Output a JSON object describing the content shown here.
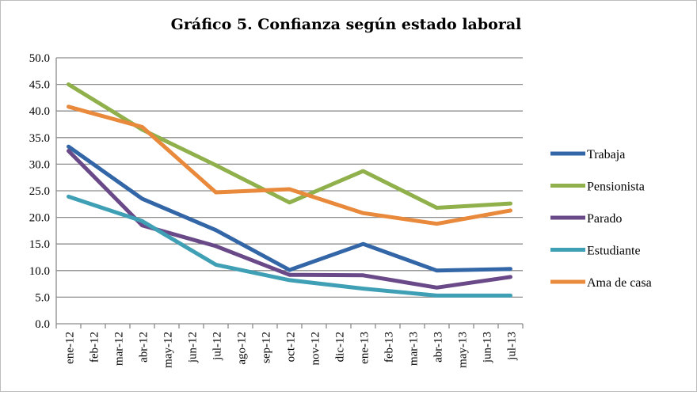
{
  "chart_data": {
    "type": "line",
    "title": "Gráfico 5. Confianza según estado laboral",
    "xlabel": "",
    "ylabel": "",
    "x": [
      "ene-12",
      "feb-12",
      "mar-12",
      "abr-12",
      "may-12",
      "jun-12",
      "jul-12",
      "ago-12",
      "sep-12",
      "oct-12",
      "nov-12",
      "dic-12",
      "ene-13",
      "feb-13",
      "mar-13",
      "abr-13",
      "may-13",
      "jun-13",
      "jul-13"
    ],
    "ylim": [
      0,
      50
    ],
    "y_ticks": [
      "0.0",
      "5.0",
      "10.0",
      "15.0",
      "20.0",
      "25.0",
      "30.0",
      "35.0",
      "40.0",
      "45.0",
      "50.0"
    ],
    "grid": "horizontal",
    "legend_position": "right",
    "series": [
      {
        "name": "Trabaja",
        "color": "#3366a6",
        "points": [
          [
            "ene-12",
            33.3
          ],
          [
            "abr-12",
            23.5
          ],
          [
            "jul-12",
            17.6
          ],
          [
            "oct-12",
            10.1
          ],
          [
            "ene-13",
            15.0
          ],
          [
            "abr-13",
            10.0
          ],
          [
            "jul-13",
            10.3
          ]
        ]
      },
      {
        "name": "Pensionista",
        "color": "#8fb04b",
        "points": [
          [
            "ene-12",
            45.0
          ],
          [
            "abr-12",
            36.5
          ],
          [
            "jul-12",
            29.8
          ],
          [
            "oct-12",
            22.8
          ],
          [
            "ene-13",
            28.7
          ],
          [
            "abr-13",
            21.8
          ],
          [
            "jul-13",
            22.6
          ]
        ]
      },
      {
        "name": "Parado",
        "color": "#6a4989",
        "points": [
          [
            "ene-12",
            32.5
          ],
          [
            "abr-12",
            18.5
          ],
          [
            "jul-12",
            14.6
          ],
          [
            "oct-12",
            9.2
          ],
          [
            "ene-13",
            9.1
          ],
          [
            "abr-13",
            6.8
          ],
          [
            "jul-13",
            8.8
          ]
        ]
      },
      {
        "name": "Estudiante",
        "color": "#3fa0b5",
        "points": [
          [
            "ene-12",
            23.9
          ],
          [
            "abr-12",
            19.3
          ],
          [
            "jul-12",
            11.1
          ],
          [
            "oct-12",
            8.2
          ],
          [
            "ene-13",
            6.6
          ],
          [
            "abr-13",
            5.3
          ],
          [
            "jul-13",
            5.3
          ]
        ]
      },
      {
        "name": "Ama de casa",
        "color": "#e8893c",
        "points": [
          [
            "ene-12",
            40.8
          ],
          [
            "abr-12",
            37.0
          ],
          [
            "jul-12",
            24.7
          ],
          [
            "oct-12",
            25.3
          ],
          [
            "ene-13",
            20.8
          ],
          [
            "abr-13",
            18.8
          ],
          [
            "jul-13",
            21.3
          ]
        ]
      }
    ]
  }
}
